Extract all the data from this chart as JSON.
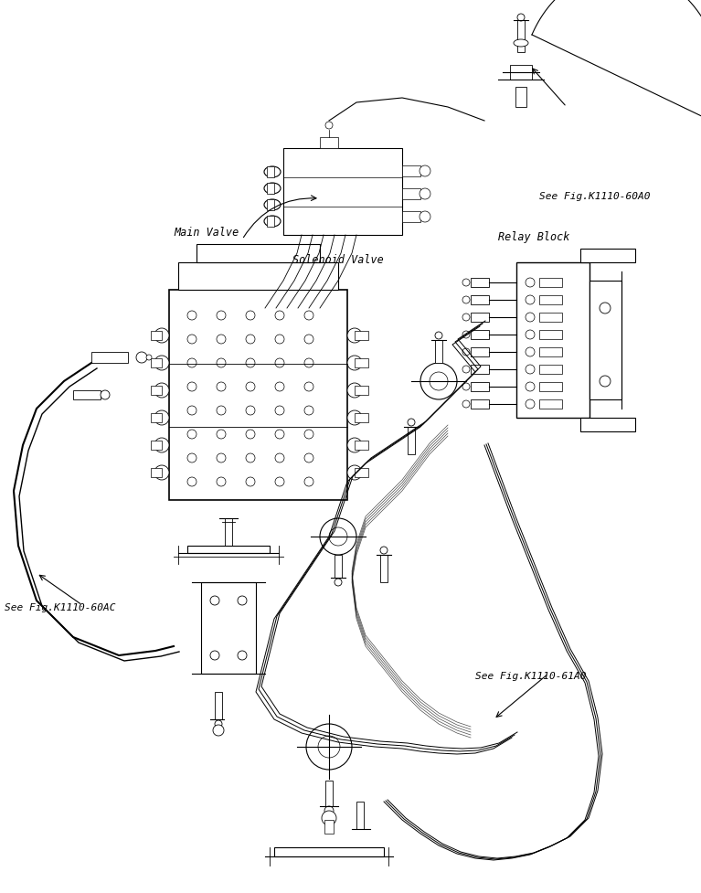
{
  "title": "",
  "background_color": "#ffffff",
  "line_color": "#000000",
  "labels": {
    "solenoid_valve": "Solenoid Valve",
    "main_valve": "Main Valve",
    "relay_block": "Relay Block",
    "see_fig_60a0": "See Fig.K1110-60A0",
    "see_fig_60ac": "See Fig.K1110-60AC",
    "see_fig_61a0": "See Fig.K1110-61A0"
  },
  "fig_size": [
    7.67,
    9.78
  ],
  "dpi": 100
}
